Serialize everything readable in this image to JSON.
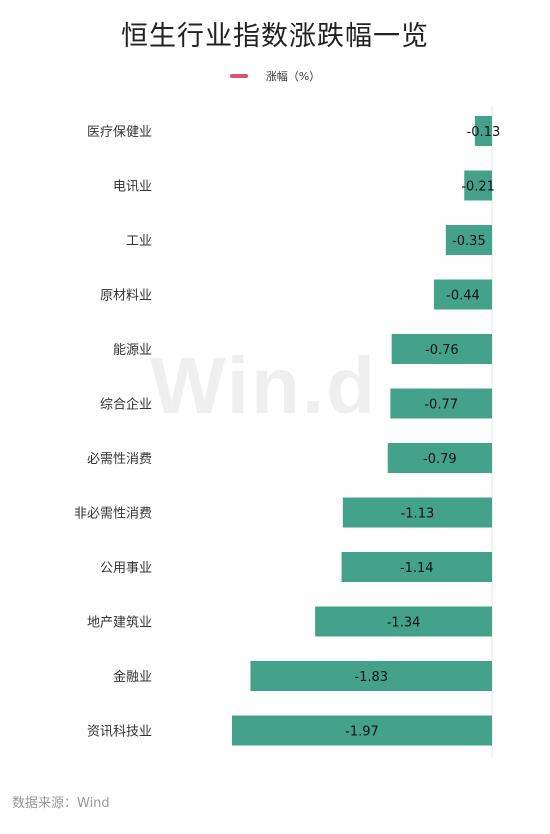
{
  "chart_data": {
    "type": "bar",
    "orientation": "horizontal",
    "title": "恒生行业指数涨跌幅一览",
    "series": [
      {
        "name": "涨幅（%）",
        "values": [
          -0.13,
          -0.21,
          -0.35,
          -0.44,
          -0.76,
          -0.77,
          -0.79,
          -1.13,
          -1.14,
          -1.34,
          -1.83,
          -1.97
        ]
      }
    ],
    "categories": [
      "医疗保健业",
      "电讯业",
      "工业",
      "原材料业",
      "能源业",
      "综合企业",
      "必需性消费",
      "非必需性消费",
      "公用事业",
      "地产建筑业",
      "金融业",
      "资讯科技业"
    ],
    "data_labels": [
      "-0.13",
      "-0.21",
      "-0.35",
      "-0.44",
      "-0.76",
      "-0.77",
      "-0.79",
      "-1.13",
      "-1.14",
      "-1.34",
      "-1.83",
      "-1.97"
    ],
    "xlim": [
      -2.2,
      0
    ],
    "grid": false,
    "legend_position": "top-center",
    "colors": {
      "bar": "#45a28a",
      "legend": "#d9536e",
      "axis": "#e6e6e6"
    }
  },
  "watermark": "Win.d",
  "source": "数据来源：Wind"
}
